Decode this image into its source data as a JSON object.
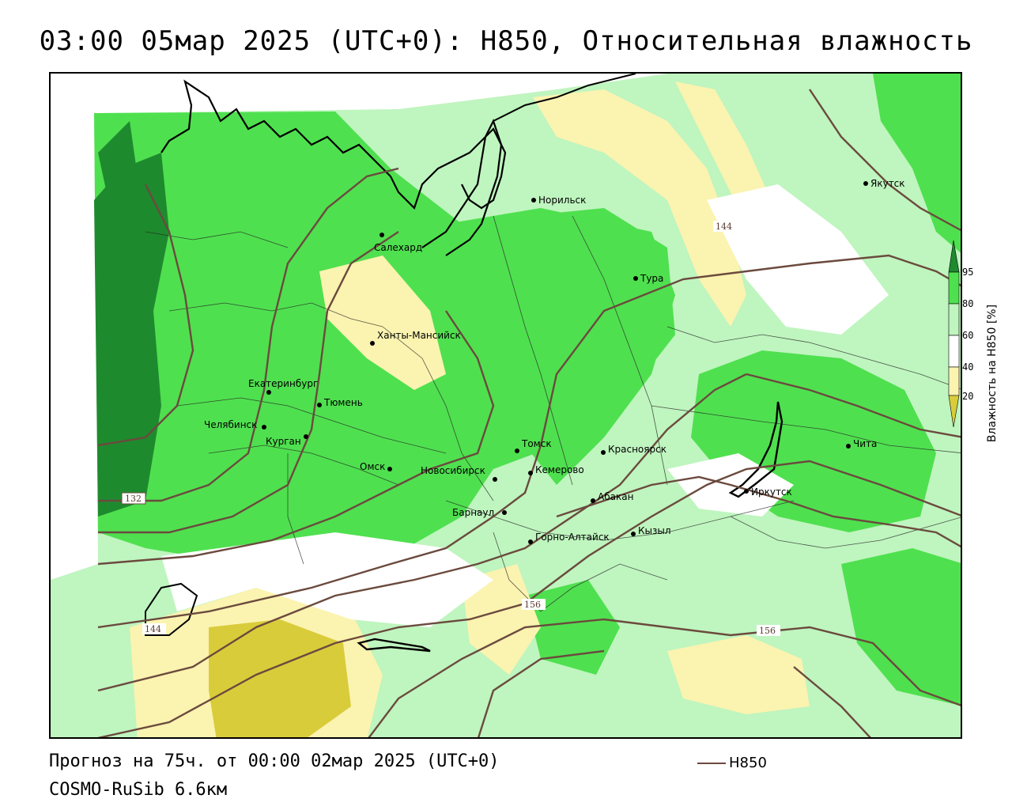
{
  "header": {
    "title": "03:00 05мар 2025 (UTC+0): H850, Относительная влажность"
  },
  "footer": {
    "forecast": "Прогноз на 75ч. от 00:00 02мар 2025 (UTC+0)",
    "model": "COSMO-RuSib 6.6км",
    "contour_legend": "H850"
  },
  "colorbar": {
    "title": "Влажность на H850 [%]",
    "ticks": [
      "95",
      "80",
      "60",
      "40",
      "20"
    ],
    "colors": {
      "above95": "#1e8a2e",
      "r80_95": "#4fe04f",
      "r60_80": "#bff5bf",
      "r40_60": "#ffffff",
      "r20_40": "#fbf3b0",
      "below20": "#d9cc3a"
    }
  },
  "contours": {
    "color": "#6b4a3e",
    "labels": [
      "144",
      "132",
      "144",
      "156",
      "156"
    ]
  },
  "cities": [
    "Якутск",
    "Норильск",
    "Салехард",
    "Тура",
    "Ханты-Мансийск",
    "Екатеринбург",
    "Тюмень",
    "Челябинск",
    "Курган",
    "Омск",
    "Томск",
    "Новосибирск",
    "Кемерово",
    "Красноярск",
    "Чита",
    "Барнаул",
    "Абакан",
    "Иркутск",
    "Кызыл",
    "Горно-Алтайск"
  ]
}
